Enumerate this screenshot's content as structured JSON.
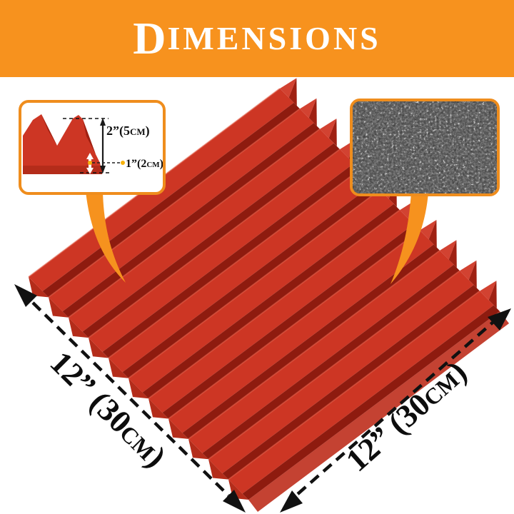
{
  "header": {
    "title_initial": "D",
    "title_rest": "IMENSIONS"
  },
  "insets": {
    "profile": {
      "height_label": "2”(5cm)",
      "base_label": "1”(2cm)"
    },
    "texture": {
      "description": "open-cell foam close-up"
    }
  },
  "dimensions": {
    "width_label": "12” (30cm)",
    "depth_label": "12” (30cm)"
  },
  "colors": {
    "banner_orange": "#f7921e",
    "inset_border_orange": "#ef8d1d",
    "pointer_orange": "#f6921e",
    "arrow_black": "#111111",
    "annotation_dot_yellow": "#f7b10a",
    "foam_bright": "#cd3624",
    "foam_dark": "#8e1b0f",
    "foam_crest": "#e05a44",
    "spike_bright": "#d24231",
    "spike_dark": "#9f2012",
    "foam_teeth": "#b42c1a",
    "foam_side": "#c44232",
    "texture_bg": "#161616"
  }
}
